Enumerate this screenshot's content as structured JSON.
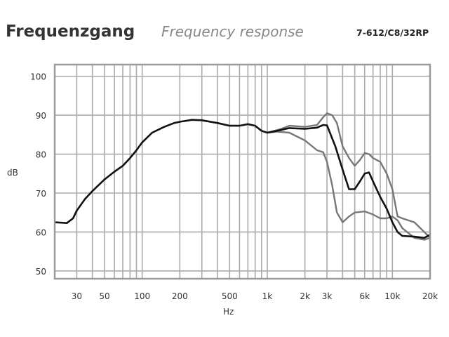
{
  "header": {
    "title": "Frequenzgang",
    "subtitle": "Frequency response",
    "model": "7-612/C8/32RP"
  },
  "chart_data": {
    "type": "line",
    "title": "Frequenzgang",
    "subtitle": "Frequency response",
    "xlabel": "Hz",
    "ylabel": "dB",
    "xscale": "log",
    "xlim": [
      20,
      20000
    ],
    "ylim": [
      48,
      103
    ],
    "grid": true,
    "x_ticks": [
      {
        "v": 30,
        "label": "30"
      },
      {
        "v": 50,
        "label": "50"
      },
      {
        "v": 100,
        "label": "100"
      },
      {
        "v": 200,
        "label": "200"
      },
      {
        "v": 500,
        "label": "500"
      },
      {
        "v": 1000,
        "label": "1k"
      },
      {
        "v": 2000,
        "label": "2k"
      },
      {
        "v": 3000,
        "label": "3k"
      },
      {
        "v": 6000,
        "label": "6k"
      },
      {
        "v": 10000,
        "label": "10k"
      },
      {
        "v": 20000,
        "label": "20k"
      }
    ],
    "y_ticks": [
      50,
      60,
      70,
      80,
      90,
      100
    ],
    "series": [
      {
        "color": "#777777",
        "x": [
          1000,
          1300,
          1500,
          2000,
          2500,
          2800,
          3000,
          3300,
          3600,
          4000,
          4500,
          5000,
          5500,
          6000,
          6500,
          7000,
          8000,
          9000,
          10000,
          11000,
          12000,
          15000,
          18000,
          20000
        ],
        "y": [
          85.5,
          86.5,
          87.3,
          87,
          87.5,
          89.5,
          90.5,
          90,
          88,
          82,
          79,
          77,
          78.5,
          80.3,
          80,
          79,
          78,
          75,
          71,
          64,
          63.5,
          62.5,
          60,
          58.5
        ]
      },
      {
        "color": "#777777",
        "x": [
          1000,
          1200,
          1500,
          2000,
          2500,
          2800,
          3000,
          3300,
          3600,
          4000,
          4500,
          5000,
          6000,
          7000,
          8000,
          9000,
          10000,
          11000,
          12000,
          15000,
          18000,
          20000
        ],
        "y": [
          85.5,
          85.8,
          85.5,
          83.5,
          81,
          80.5,
          78,
          72,
          65,
          62.5,
          64,
          65,
          65.3,
          64.5,
          63.5,
          63.5,
          64,
          63,
          61,
          58.5,
          58,
          58.5
        ]
      },
      {
        "color": "#111111",
        "x": [
          20,
          25,
          28,
          30,
          35,
          40,
          50,
          60,
          70,
          80,
          90,
          100,
          120,
          150,
          180,
          200,
          250,
          300,
          400,
          500,
          600,
          700,
          800,
          900,
          1000,
          1200,
          1500,
          2000,
          2500,
          2800,
          3000,
          3500,
          4000,
          4500,
          5000,
          5500,
          6000,
          6500,
          7000,
          8000,
          9000,
          10000,
          11000,
          12000,
          15000,
          18000,
          20000
        ],
        "y": [
          62.5,
          62.3,
          63.5,
          65.5,
          68.5,
          70.5,
          73.5,
          75.5,
          77,
          79,
          81,
          83,
          85.5,
          87,
          88,
          88.3,
          88.8,
          88.7,
          88,
          87.3,
          87.3,
          87.7,
          87.3,
          86,
          85.5,
          86,
          86.7,
          86.5,
          86.8,
          87.5,
          87.4,
          82,
          76,
          71,
          71,
          73,
          75,
          75.3,
          73,
          69,
          66,
          62.5,
          60,
          59,
          58.8,
          58.5,
          59.3
        ]
      }
    ]
  }
}
